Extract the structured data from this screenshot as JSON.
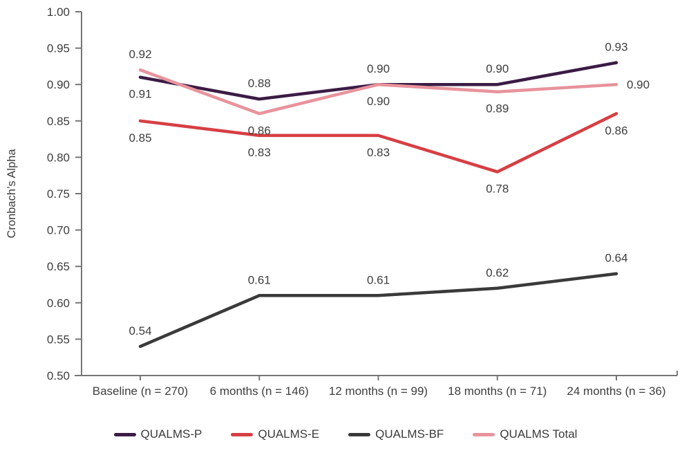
{
  "chart_data": {
    "type": "line",
    "title": "",
    "xlabel": "",
    "ylabel": "Cronbach’s Alpha",
    "ylim": [
      0.5,
      1.0
    ],
    "ytick_step": 0.05,
    "grid": false,
    "legend_position": "bottom",
    "categories": [
      "Baseline (n = 270)",
      "6 months (n = 146)",
      "12 months (n = 99)",
      "18 months (n = 71)",
      "24 months (n = 36)"
    ],
    "series": [
      {
        "name": "QUALMS-P",
        "color": "#3b1c45",
        "values": [
          0.91,
          0.88,
          0.9,
          0.9,
          0.93
        ],
        "label_placement": [
          "below",
          "above",
          "above",
          "above",
          "above"
        ]
      },
      {
        "name": "QUALMS-E",
        "color": "#d63f43",
        "values": [
          0.85,
          0.83,
          0.83,
          0.78,
          0.86
        ],
        "label_placement": [
          "below",
          "below",
          "below",
          "below",
          "below"
        ]
      },
      {
        "name": "QUALMS-BF",
        "color": "#3a3a3a",
        "values": [
          0.54,
          0.61,
          0.61,
          0.62,
          0.64
        ],
        "label_placement": [
          "above",
          "above",
          "above",
          "above",
          "above"
        ]
      },
      {
        "name": "QUALMS Total",
        "color": "#e8939c",
        "values": [
          0.92,
          0.86,
          0.9,
          0.89,
          0.9
        ],
        "label_placement": [
          "above",
          "below",
          "below",
          "below",
          "right"
        ]
      }
    ],
    "text_color": "#3d3d3d",
    "axis_color": "#757575"
  }
}
